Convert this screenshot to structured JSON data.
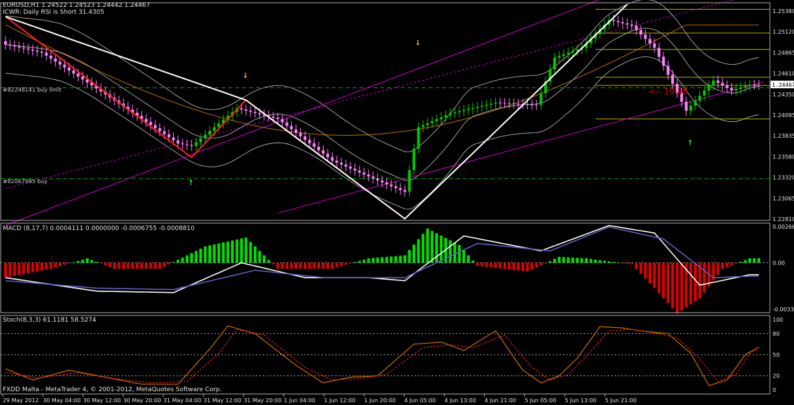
{
  "window": {
    "symbol_line": "EURUSD,H1  1.24522 1.24523 1.24442 1.24467",
    "indicator_line": "ICWR: Daily RSI is Short 31.4305",
    "footer": "FXDD Malta - MetaTrader 4, © 2001-2012, MetaQuotes Software Corp.",
    "countdown": "<-- 19:48"
  },
  "colors": {
    "background": "#000000",
    "bull_candle": "#00c800",
    "bear_candle": "#ff80ff",
    "zigzag": "#ff2020",
    "wave": "#ffffff",
    "channel": "#cc00cc",
    "ma_slow": "#c07000",
    "bollinger": "#c8c8c8",
    "order_line": "#00a000",
    "fib_lines": "#b4b400",
    "macd_up": "#00e000",
    "macd_down": "#e00000",
    "macd_signal": "#6060c0",
    "stoch_main": "#d07000",
    "stoch_signal": "#ff2020",
    "grid": "#b0b0b0"
  },
  "chart_data": [
    {
      "type": "candlestick",
      "panel": "price",
      "ylim": [
        1.2281,
        1.2547
      ],
      "yticks": [
        "1.25380",
        "1.25120",
        "1.24865",
        "1.24610",
        "1.24350",
        "1.24095",
        "1.23835",
        "1.23580",
        "1.23320",
        "1.23065",
        "1.22810"
      ],
      "current_price": "1.24467",
      "order_lines": [
        {
          "label": "#82248141 buy limit",
          "value": 1.2443
        },
        {
          "label": "#82067995 buy",
          "value": 1.2332
        }
      ],
      "fib_levels": [
        1.2539,
        1.251,
        1.249,
        1.2456,
        1.2446,
        1.2405
      ],
      "close_anchors": [
        {
          "bar": 0,
          "close": 1.2496
        },
        {
          "bar": 8,
          "close": 1.2486
        },
        {
          "bar": 22,
          "close": 1.2435
        },
        {
          "bar": 38,
          "close": 1.2375
        },
        {
          "bar": 41,
          "close": 1.2372
        },
        {
          "bar": 51,
          "close": 1.2418
        },
        {
          "bar": 60,
          "close": 1.2405
        },
        {
          "bar": 72,
          "close": 1.2354
        },
        {
          "bar": 84,
          "close": 1.2325
        },
        {
          "bar": 88,
          "close": 1.2316
        },
        {
          "bar": 91,
          "close": 1.2395
        },
        {
          "bar": 98,
          "close": 1.2412
        },
        {
          "bar": 108,
          "close": 1.2425
        },
        {
          "bar": 117,
          "close": 1.2422
        },
        {
          "bar": 121,
          "close": 1.248
        },
        {
          "bar": 127,
          "close": 1.2492
        },
        {
          "bar": 133,
          "close": 1.2526
        },
        {
          "bar": 138,
          "close": 1.2519
        },
        {
          "bar": 143,
          "close": 1.2492
        },
        {
          "bar": 150,
          "close": 1.2415
        },
        {
          "bar": 156,
          "close": 1.2452
        },
        {
          "bar": 160,
          "close": 1.244
        },
        {
          "bar": 164,
          "close": 1.2447
        }
      ],
      "zigzag": [
        {
          "bar": 0,
          "value": 1.253
        },
        {
          "bar": 41,
          "value": 1.2358
        },
        {
          "bar": 53,
          "value": 1.2428
        },
        {
          "bar": 88,
          "value": 1.2283
        }
      ],
      "wave_lines": [
        {
          "bar": 0,
          "value": 1.253
        },
        {
          "bar": 53,
          "value": 1.2428
        },
        {
          "bar": 88,
          "value": 1.2283
        },
        {
          "bar": 137,
          "value": 1.2545
        }
      ],
      "down_arrows": [
        {
          "bar": 53,
          "value": 1.2452
        },
        {
          "bar": 91,
          "value": 1.2492
        }
      ],
      "up_arrows": [
        {
          "bar": 41,
          "value": 1.2336
        },
        {
          "bar": 151,
          "value": 1.2385
        }
      ]
    },
    {
      "type": "histogram+line",
      "panel": "macd",
      "title": "MACD (8,17,7) 0.0004111 0.0000000 -0.0006755 -0.0008810",
      "ylim": [
        -0.00335,
        0.00266
      ],
      "yticks": [
        "0.00266",
        "0.00",
        "-0.00335"
      ],
      "histogram_anchors": [
        {
          "bar": 0,
          "value": -0.001
        },
        {
          "bar": 10,
          "value": -0.0004
        },
        {
          "bar": 18,
          "value": 0.0003
        },
        {
          "bar": 24,
          "value": -0.0004
        },
        {
          "bar": 34,
          "value": -0.0004
        },
        {
          "bar": 44,
          "value": 0.0011
        },
        {
          "bar": 53,
          "value": 0.0017
        },
        {
          "bar": 60,
          "value": -0.0004
        },
        {
          "bar": 72,
          "value": -0.0004
        },
        {
          "bar": 80,
          "value": 0.0003
        },
        {
          "bar": 88,
          "value": 0.0005
        },
        {
          "bar": 93,
          "value": 0.0023
        },
        {
          "bar": 100,
          "value": 0.0012
        },
        {
          "bar": 104,
          "value": -0.0002
        },
        {
          "bar": 115,
          "value": -0.0006
        },
        {
          "bar": 122,
          "value": 0.0004
        },
        {
          "bar": 128,
          "value": 0.0003
        },
        {
          "bar": 138,
          "value": -0.0001
        },
        {
          "bar": 143,
          "value": -0.0017
        },
        {
          "bar": 148,
          "value": -0.0034
        },
        {
          "bar": 153,
          "value": -0.0024
        },
        {
          "bar": 158,
          "value": -0.0004
        },
        {
          "bar": 164,
          "value": 0.0003
        }
      ],
      "macd_line": [
        {
          "bar": 0,
          "value": -0.001
        },
        {
          "bar": 20,
          "value": -0.0019
        },
        {
          "bar": 37,
          "value": -0.002
        },
        {
          "bar": 52,
          "value": 0.0
        },
        {
          "bar": 66,
          "value": -0.001
        },
        {
          "bar": 80,
          "value": -0.001
        },
        {
          "bar": 88,
          "value": -0.0012
        },
        {
          "bar": 101,
          "value": 0.0018
        },
        {
          "bar": 118,
          "value": 0.0008
        },
        {
          "bar": 133,
          "value": 0.0025
        },
        {
          "bar": 143,
          "value": 0.002
        },
        {
          "bar": 153,
          "value": -0.0015
        },
        {
          "bar": 164,
          "value": -0.0008
        }
      ],
      "signal_line": [
        {
          "bar": 0,
          "value": -0.0012
        },
        {
          "bar": 20,
          "value": -0.0017
        },
        {
          "bar": 37,
          "value": -0.0018
        },
        {
          "bar": 55,
          "value": -0.0005
        },
        {
          "bar": 70,
          "value": -0.001
        },
        {
          "bar": 88,
          "value": -0.001
        },
        {
          "bar": 104,
          "value": 0.0013
        },
        {
          "bar": 120,
          "value": 0.0008
        },
        {
          "bar": 133,
          "value": 0.0024
        },
        {
          "bar": 145,
          "value": 0.0016
        },
        {
          "bar": 156,
          "value": -0.001
        },
        {
          "bar": 164,
          "value": -0.0009
        }
      ]
    },
    {
      "type": "line",
      "panel": "stochastic",
      "title": "Stoch(8,3,3) 61.1181 58.5274",
      "ylim": [
        0,
        100
      ],
      "yticks": [
        "100",
        "80",
        "50",
        "20",
        "0"
      ],
      "main": [
        {
          "bar": 0,
          "value": 30
        },
        {
          "bar": 6,
          "value": 14
        },
        {
          "bar": 14,
          "value": 28
        },
        {
          "bar": 22,
          "value": 18
        },
        {
          "bar": 30,
          "value": 8
        },
        {
          "bar": 38,
          "value": 8
        },
        {
          "bar": 45,
          "value": 58
        },
        {
          "bar": 49,
          "value": 91
        },
        {
          "bar": 55,
          "value": 80
        },
        {
          "bar": 64,
          "value": 35
        },
        {
          "bar": 70,
          "value": 10
        },
        {
          "bar": 76,
          "value": 18
        },
        {
          "bar": 82,
          "value": 20
        },
        {
          "bar": 90,
          "value": 65
        },
        {
          "bar": 96,
          "value": 68
        },
        {
          "bar": 101,
          "value": 56
        },
        {
          "bar": 108,
          "value": 84
        },
        {
          "bar": 114,
          "value": 28
        },
        {
          "bar": 118,
          "value": 10
        },
        {
          "bar": 122,
          "value": 20
        },
        {
          "bar": 126,
          "value": 45
        },
        {
          "bar": 131,
          "value": 90
        },
        {
          "bar": 136,
          "value": 88
        },
        {
          "bar": 140,
          "value": 84
        },
        {
          "bar": 146,
          "value": 80
        },
        {
          "bar": 151,
          "value": 52
        },
        {
          "bar": 155,
          "value": 6
        },
        {
          "bar": 159,
          "value": 14
        },
        {
          "bar": 163,
          "value": 50
        },
        {
          "bar": 166,
          "value": 61
        }
      ],
      "signal": [
        {
          "bar": 0,
          "value": 25
        },
        {
          "bar": 7,
          "value": 17
        },
        {
          "bar": 16,
          "value": 24
        },
        {
          "bar": 24,
          "value": 16
        },
        {
          "bar": 32,
          "value": 10
        },
        {
          "bar": 40,
          "value": 12
        },
        {
          "bar": 47,
          "value": 52
        },
        {
          "bar": 51,
          "value": 86
        },
        {
          "bar": 57,
          "value": 78
        },
        {
          "bar": 66,
          "value": 32
        },
        {
          "bar": 72,
          "value": 14
        },
        {
          "bar": 78,
          "value": 16
        },
        {
          "bar": 84,
          "value": 22
        },
        {
          "bar": 92,
          "value": 60
        },
        {
          "bar": 98,
          "value": 64
        },
        {
          "bar": 103,
          "value": 60
        },
        {
          "bar": 110,
          "value": 78
        },
        {
          "bar": 116,
          "value": 32
        },
        {
          "bar": 120,
          "value": 14
        },
        {
          "bar": 124,
          "value": 22
        },
        {
          "bar": 128,
          "value": 48
        },
        {
          "bar": 133,
          "value": 84
        },
        {
          "bar": 138,
          "value": 86
        },
        {
          "bar": 142,
          "value": 82
        },
        {
          "bar": 148,
          "value": 74
        },
        {
          "bar": 153,
          "value": 44
        },
        {
          "bar": 157,
          "value": 12
        },
        {
          "bar": 161,
          "value": 22
        },
        {
          "bar": 164,
          "value": 52
        },
        {
          "bar": 166,
          "value": 58
        }
      ]
    }
  ],
  "x_axis_labels": [
    "29 May 2012",
    "30 May 04:00",
    "30 May 12:00",
    "30 May 20:00",
    "31 May 04:00",
    "31 May 12:00",
    "31 May 20:00",
    "1 Jun 04:00",
    "1 Jun 12:00",
    "1 Jun 20:00",
    "4 Jun 05:00",
    "4 Jun 13:00",
    "4 Jun 21:00",
    "5 Jun 05:00",
    "5 Jun 13:00",
    "5 Jun 21:00"
  ]
}
